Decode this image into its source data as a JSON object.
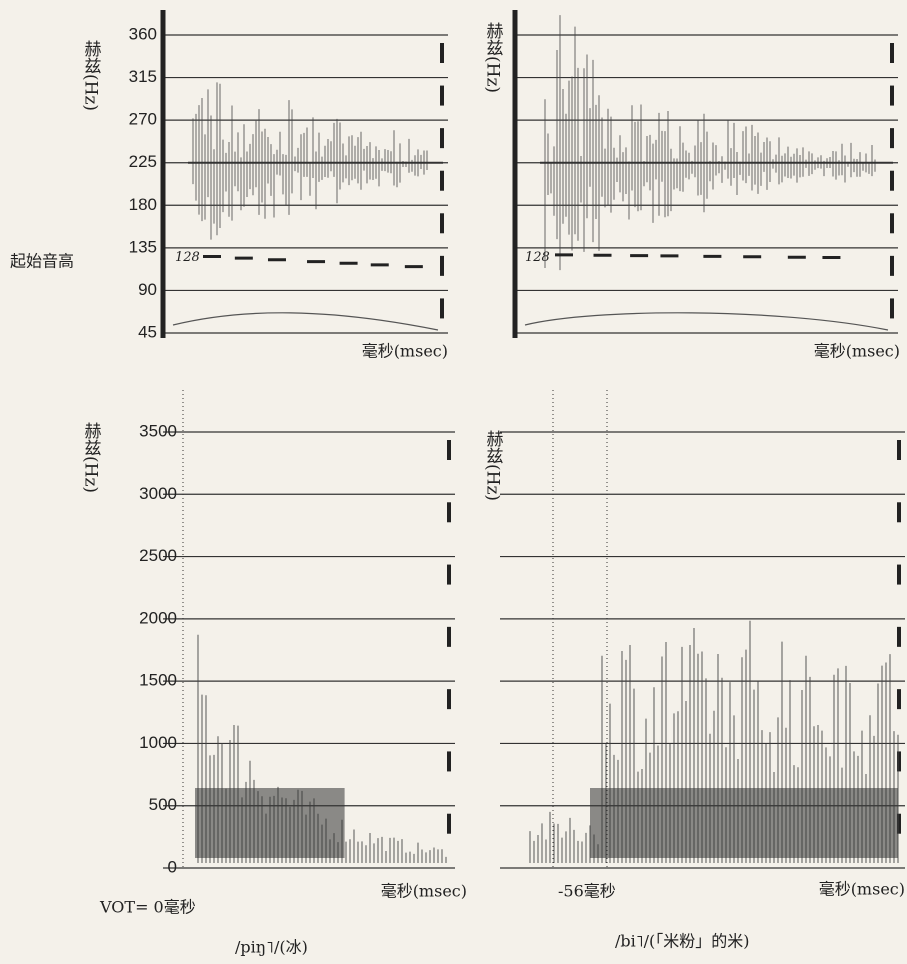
{
  "chart_data": [
    {
      "type": "pitch_trace",
      "y_label": "赫兹(Hz)",
      "x_label": "毫秒(msec)",
      "side_label": "起始音高",
      "ylim": [
        45,
        360
      ],
      "yticks": [
        45,
        90,
        135,
        180,
        225,
        270,
        315,
        360
      ],
      "annotation": {
        "text": "128",
        "y": 128
      }
    },
    {
      "type": "pitch_trace",
      "y_label": "赫兹(Hz)",
      "x_label": "毫秒(msec)",
      "annotation": {
        "text": "128",
        "y": 128
      }
    },
    {
      "type": "spectrogram",
      "y_label": "赫兹(Hz)",
      "x_label": "毫秒(msec)",
      "note": "VOT= 0毫秒",
      "caption": "/piŋ˥/(冰)",
      "ylim": [
        0,
        3500
      ],
      "yticks": [
        0,
        500,
        1000,
        1500,
        2000,
        2500,
        3000,
        3500
      ]
    },
    {
      "type": "spectrogram",
      "y_label": "赫兹(Hz)",
      "x_label": "毫秒(msec)",
      "note": "-56毫秒",
      "caption": "/bi˥/(「米粉」的米)"
    }
  ]
}
